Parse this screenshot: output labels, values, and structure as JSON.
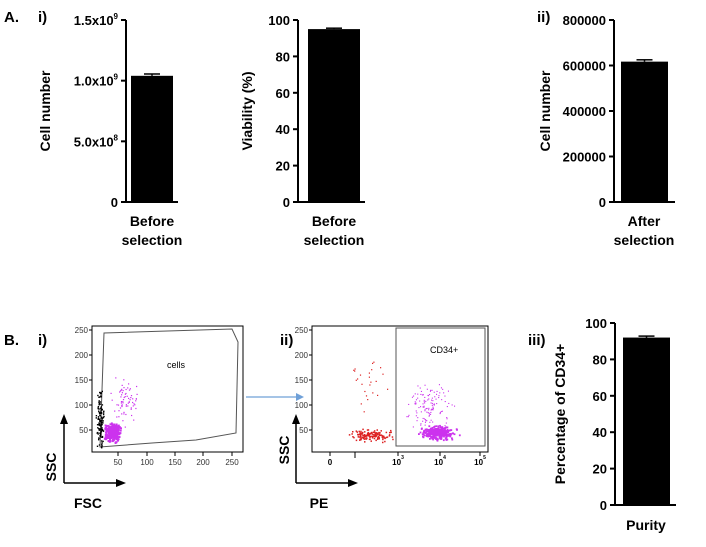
{
  "panel_labels": {
    "A": "A.",
    "A_i": "i)",
    "A_ii": "ii)",
    "B": "B.",
    "B_i": "i)",
    "B_ii": "ii)",
    "B_iii": "iii)"
  },
  "colors": {
    "bar": "#000000",
    "arrow": "#6fa0d8",
    "dots_black": "#000000",
    "dots_magenta": "#cc33ee",
    "dots_red": "#dd2222"
  },
  "chart_data": [
    {
      "type": "bar",
      "id": "cell-number-before",
      "ylabel": "Cell number",
      "categories": [
        "Before\nselection"
      ],
      "category_lines": [
        "Before",
        "selection"
      ],
      "values": [
        1040000000
      ],
      "error": [
        15000000
      ],
      "ylim": [
        0,
        1500000000
      ],
      "yticks": [
        {
          "value": 0,
          "mantissa": "0",
          "exp": ""
        },
        {
          "value": 500000000,
          "mantissa": "5.0x10",
          "exp": "8"
        },
        {
          "value": 1000000000,
          "mantissa": "1.0x10",
          "exp": "9"
        },
        {
          "value": 1500000000,
          "mantissa": "1.5x10",
          "exp": "9"
        }
      ]
    },
    {
      "type": "bar",
      "id": "viability-before",
      "ylabel": "Viability (%)",
      "category_lines": [
        "Before",
        "selection"
      ],
      "values": [
        95
      ],
      "error": [
        0.5
      ],
      "ylim": [
        0,
        100
      ],
      "yticks": [
        {
          "value": 0,
          "mantissa": "0",
          "exp": ""
        },
        {
          "value": 20,
          "mantissa": "20",
          "exp": ""
        },
        {
          "value": 40,
          "mantissa": "40",
          "exp": ""
        },
        {
          "value": 60,
          "mantissa": "60",
          "exp": ""
        },
        {
          "value": 80,
          "mantissa": "80",
          "exp": ""
        },
        {
          "value": 100,
          "mantissa": "100",
          "exp": ""
        }
      ]
    },
    {
      "type": "bar",
      "id": "cell-number-after",
      "ylabel": "Cell number",
      "category_lines": [
        "After",
        "selection"
      ],
      "values": [
        617000
      ],
      "error": [
        8000
      ],
      "ylim": [
        0,
        800000
      ],
      "yticks": [
        {
          "value": 0,
          "mantissa": "0",
          "exp": ""
        },
        {
          "value": 200000,
          "mantissa": "200000",
          "exp": ""
        },
        {
          "value": 400000,
          "mantissa": "400000",
          "exp": ""
        },
        {
          "value": 600000,
          "mantissa": "600000",
          "exp": ""
        },
        {
          "value": 800000,
          "mantissa": "800000",
          "exp": ""
        }
      ]
    },
    {
      "type": "scatter",
      "id": "flow-fsc-ssc",
      "xlabel": "FSC",
      "ylabel": "SSC",
      "gate_label": "cells",
      "xticks": [
        "50",
        "100",
        "150",
        "200",
        "250"
      ],
      "yticks": [
        "50",
        "100",
        "150",
        "200",
        "250"
      ]
    },
    {
      "type": "scatter",
      "id": "flow-pe-ssc",
      "xlabel": "PE",
      "ylabel": "SSC",
      "gate_label": "CD34+",
      "xticks": [
        {
          "mantissa": "0",
          "exp": ""
        },
        {
          "mantissa": "10",
          "exp": "3"
        },
        {
          "mantissa": "10",
          "exp": "4"
        },
        {
          "mantissa": "10",
          "exp": "5"
        }
      ],
      "yticks": [
        "50",
        "100",
        "150",
        "200",
        "250"
      ]
    },
    {
      "type": "bar",
      "id": "purity",
      "ylabel": "Percentage of CD34+",
      "category_lines": [
        "Purity"
      ],
      "values": [
        92
      ],
      "error": [
        0.8
      ],
      "ylim": [
        0,
        100
      ],
      "yticks": [
        {
          "value": 0,
          "mantissa": "0",
          "exp": ""
        },
        {
          "value": 20,
          "mantissa": "20",
          "exp": ""
        },
        {
          "value": 40,
          "mantissa": "40",
          "exp": ""
        },
        {
          "value": 60,
          "mantissa": "60",
          "exp": ""
        },
        {
          "value": 80,
          "mantissa": "80",
          "exp": ""
        },
        {
          "value": 100,
          "mantissa": "100",
          "exp": ""
        }
      ]
    }
  ]
}
